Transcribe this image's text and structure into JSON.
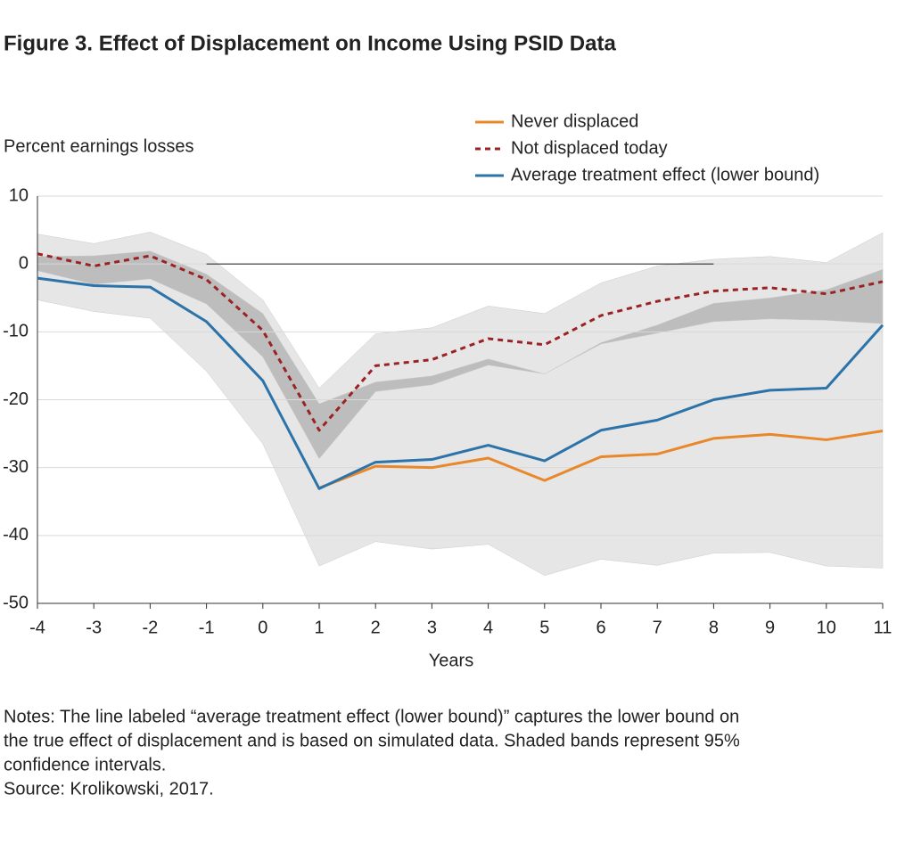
{
  "chart_data": {
    "type": "line",
    "title": "Figure 3. Effect of Displacement on Income Using PSID Data",
    "y_label": "Percent earnings losses",
    "x_label": "Years",
    "x": [
      -4,
      -3,
      -2,
      -1,
      0,
      1,
      2,
      3,
      4,
      5,
      6,
      7,
      8,
      9,
      10,
      11
    ],
    "xlim": [
      -4,
      11
    ],
    "xticks": [
      -4,
      -3,
      -2,
      -1,
      0,
      1,
      2,
      3,
      4,
      5,
      6,
      7,
      8,
      9,
      10,
      11
    ],
    "ylim": [
      -50,
      10
    ],
    "yticks": [
      10,
      0,
      -10,
      -20,
      -30,
      -40,
      -50
    ],
    "grid": true,
    "legend": "top-right",
    "bands": [
      {
        "color": "#e6e6e6",
        "upper": [
          4.4,
          3,
          4.7,
          1.4,
          -5.3,
          -18.3,
          -10.3,
          -9.4,
          -6.2,
          -7.3,
          -2.8,
          -0.3,
          0.7,
          1.1,
          0.2,
          4.6
        ],
        "lower": [
          -5.3,
          -7,
          -8,
          -15.8,
          -26.5,
          -44.5,
          -40.9,
          -42,
          -41.3,
          -45.9,
          -43.5,
          -44.4,
          -42.6,
          -42.5,
          -44.5,
          -44.8
        ]
      },
      {
        "color": "#bdbdbd",
        "upper": [
          1.1,
          1.2,
          1.9,
          -1.5,
          -7.3,
          -20.6,
          -17.4,
          -16.5,
          -14,
          -16.2,
          -11.6,
          -9,
          -5.8,
          -5,
          -3.8,
          -0.8
        ],
        "lower": [
          -1,
          -3,
          -2.2,
          -5.9,
          -13.7,
          -28.7,
          -18.8,
          -17.8,
          -14.9,
          -16.2,
          -11.8,
          -10.2,
          -8.5,
          -8.1,
          -8.3,
          -8.8
        ]
      }
    ],
    "series": [
      {
        "name": "Never displaced",
        "color": "#e8882a",
        "dash": false,
        "values": [
          null,
          null,
          null,
          null,
          null,
          -33,
          -29.8,
          -30,
          -28.6,
          -31.9,
          -28.4,
          -28,
          -25.7,
          -25.1,
          -25.9,
          -24.6
        ]
      },
      {
        "name": "Not displaced today",
        "color": "#9b2222",
        "dash": true,
        "values": [
          1.5,
          -0.3,
          1.2,
          -2.3,
          -9.8,
          -24.5,
          -15,
          -14.1,
          -11,
          -11.9,
          -7.6,
          -5.5,
          -4,
          -3.5,
          -4.4,
          -2.6
        ]
      },
      {
        "name": "Average treatment effect (lower bound)",
        "color": "#2b73a8",
        "dash": false,
        "values": [
          -2.1,
          -3.2,
          -3.4,
          -8.5,
          -17.2,
          -33.1,
          -29.2,
          -28.8,
          -26.7,
          -29,
          -24.5,
          -23,
          -20,
          -18.6,
          -18.3,
          -9
        ]
      }
    ]
  },
  "notes": [
    "Notes: The line labeled “average treatment effect (lower bound)” captures the lower bound on",
    "the true effect of displacement and is based on simulated data.  Shaded bands represent 95%",
    "confidence intervals."
  ],
  "source": "Source: Krolikowski, 2017."
}
